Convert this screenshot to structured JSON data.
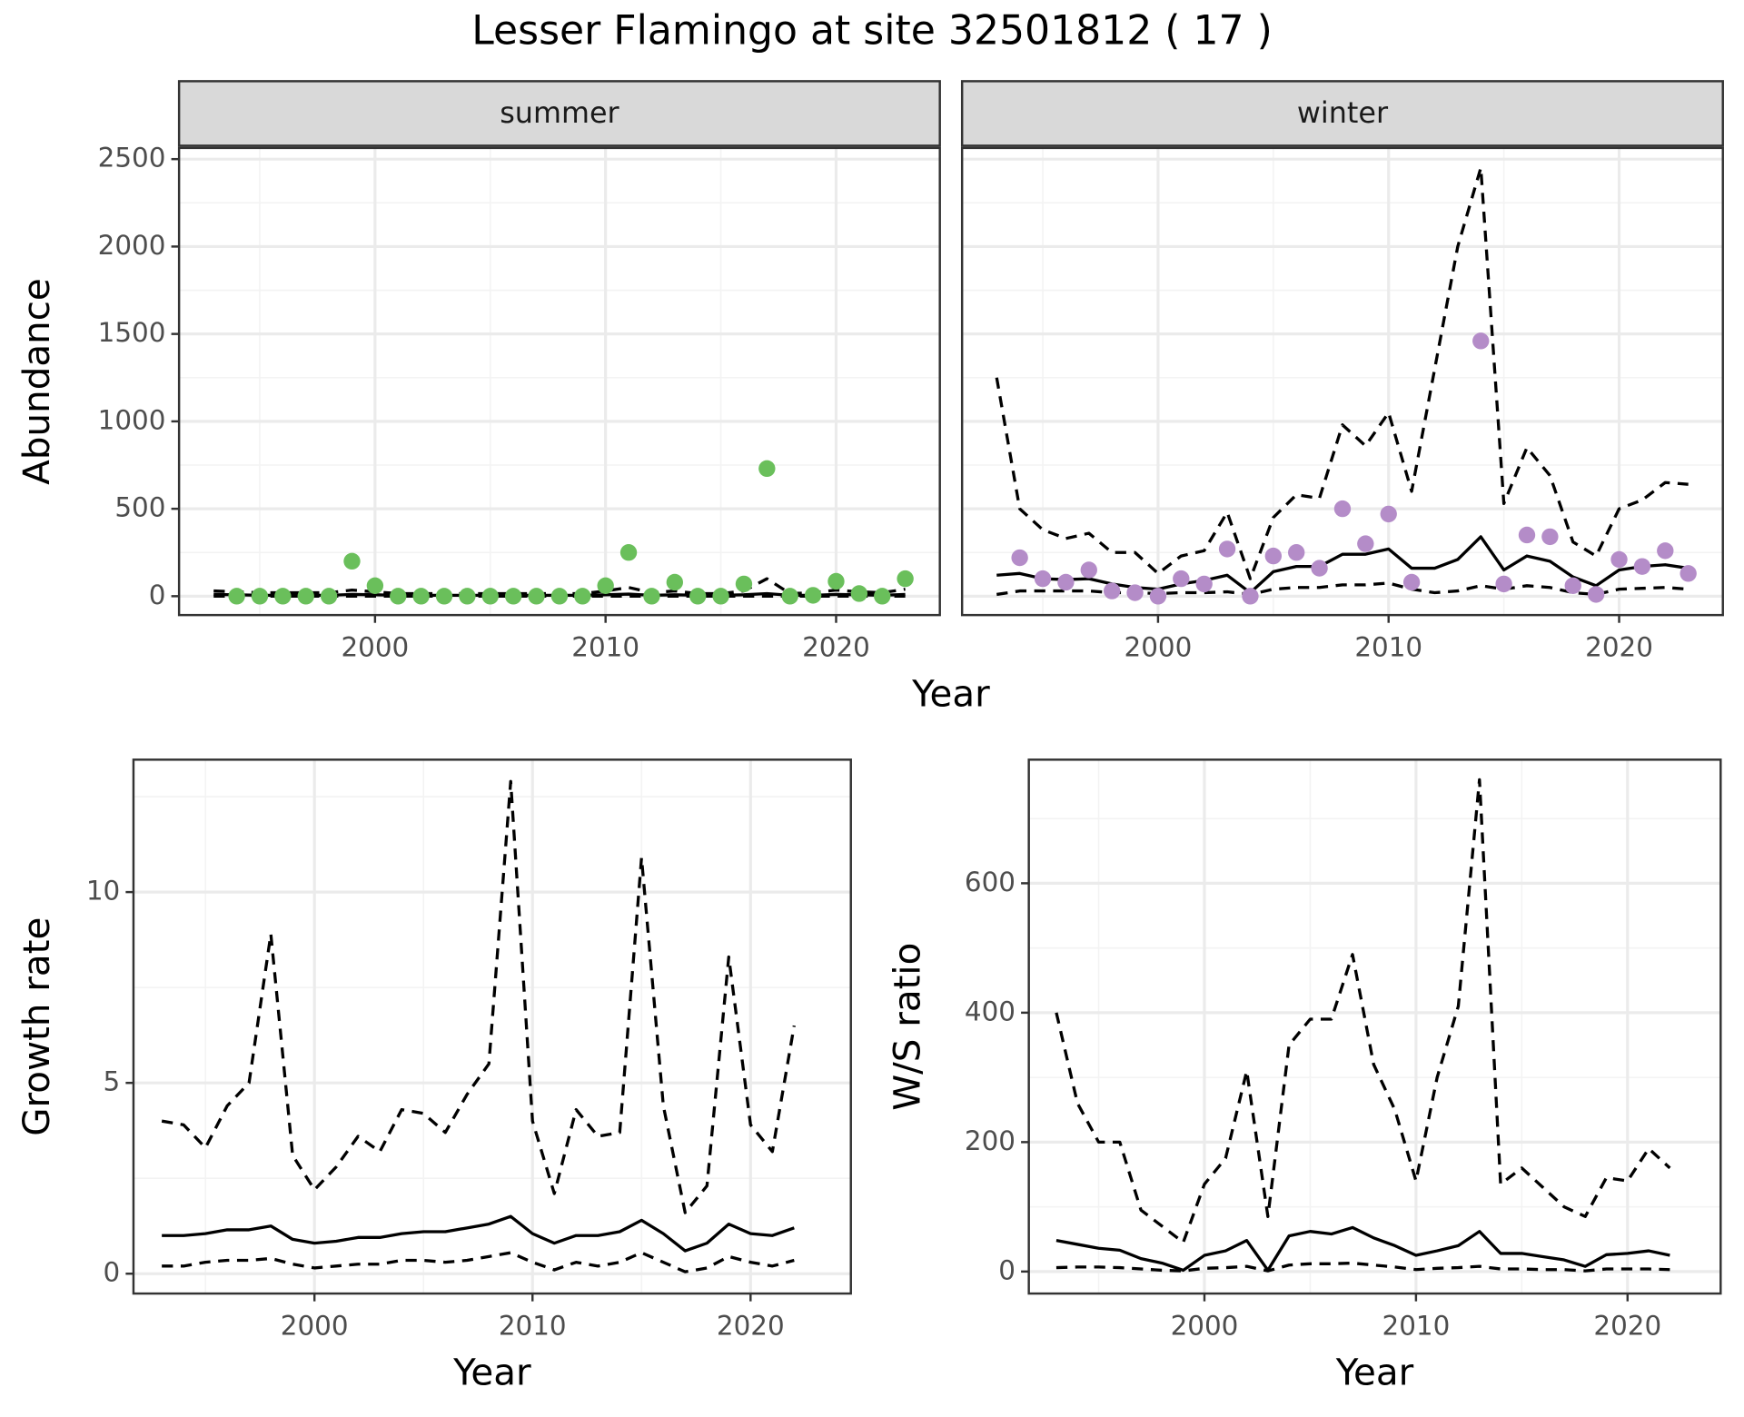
{
  "title": "Lesser Flamingo at site 32501812 ( 17 )",
  "chart_data": [
    {
      "type": "line",
      "title": "summer",
      "xlabel": "Year",
      "ylabel": "Abundance",
      "x": [
        1993,
        1994,
        1995,
        1996,
        1997,
        1998,
        1999,
        2000,
        2001,
        2002,
        2003,
        2004,
        2005,
        2006,
        2007,
        2008,
        2009,
        2010,
        2011,
        2012,
        2013,
        2014,
        2015,
        2016,
        2017,
        2018,
        2019,
        2020,
        2021,
        2022,
        2023
      ],
      "series": [
        {
          "type": "line",
          "linestyle": "dashed",
          "color": "#000000",
          "values": [
            30,
            25,
            20,
            20,
            20,
            20,
            35,
            25,
            15,
            15,
            15,
            15,
            15,
            15,
            15,
            15,
            15,
            30,
            50,
            20,
            30,
            15,
            15,
            30,
            100,
            15,
            20,
            35,
            25,
            20,
            40
          ]
        },
        {
          "type": "line",
          "linestyle": "dashed",
          "color": "#000000",
          "values": [
            0,
            0,
            0,
            0,
            0,
            0,
            0,
            0,
            0,
            0,
            0,
            0,
            0,
            0,
            0,
            0,
            0,
            0,
            0,
            0,
            0,
            0,
            0,
            0,
            0,
            0,
            0,
            0,
            0,
            0,
            0
          ]
        },
        {
          "type": "line",
          "linestyle": "solid",
          "color": "#000000",
          "values": [
            10,
            8,
            5,
            5,
            5,
            5,
            10,
            8,
            5,
            5,
            5,
            5,
            5,
            5,
            5,
            5,
            5,
            8,
            12,
            5,
            8,
            5,
            5,
            8,
            15,
            5,
            5,
            10,
            8,
            5,
            10
          ]
        },
        {
          "type": "scatter",
          "color": "#6abf5b",
          "values": [
            null,
            0,
            0,
            0,
            0,
            0,
            200,
            60,
            0,
            0,
            0,
            0,
            0,
            0,
            0,
            0,
            0,
            60,
            250,
            0,
            80,
            0,
            0,
            70,
            730,
            0,
            5,
            85,
            15,
            0,
            100
          ]
        }
      ],
      "xlim": [
        1991.5,
        2024.5
      ],
      "xticks": [
        2000,
        2010,
        2020
      ],
      "xminor": [
        1995,
        2005,
        2015
      ],
      "ylim": [
        -108,
        2564
      ],
      "yticks": [
        0,
        500,
        1000,
        1500,
        2000,
        2500
      ],
      "yminor": [
        250,
        750,
        1250,
        1750,
        2250
      ],
      "ytick_labels": true,
      "grid": true
    },
    {
      "type": "line",
      "title": "winter",
      "x": [
        1993,
        1994,
        1995,
        1996,
        1997,
        1998,
        1999,
        2000,
        2001,
        2002,
        2003,
        2004,
        2005,
        2006,
        2007,
        2008,
        2009,
        2010,
        2011,
        2012,
        2013,
        2014,
        2015,
        2016,
        2017,
        2018,
        2019,
        2020,
        2021,
        2022,
        2023
      ],
      "series": [
        {
          "type": "line",
          "linestyle": "dashed",
          "color": "#000000",
          "values": [
            1250,
            500,
            380,
            330,
            360,
            250,
            250,
            130,
            230,
            260,
            480,
            100,
            450,
            580,
            560,
            980,
            860,
            1050,
            600,
            1300,
            2000,
            2450,
            530,
            850,
            690,
            310,
            230,
            500,
            550,
            650,
            640
          ]
        },
        {
          "type": "line",
          "linestyle": "dashed",
          "color": "#000000",
          "values": [
            10,
            30,
            30,
            30,
            30,
            20,
            20,
            15,
            20,
            20,
            25,
            10,
            40,
            50,
            50,
            65,
            65,
            75,
            40,
            20,
            30,
            60,
            40,
            60,
            50,
            20,
            10,
            40,
            45,
            50,
            40
          ]
        },
        {
          "type": "line",
          "linestyle": "solid",
          "color": "#000000",
          "values": [
            120,
            130,
            100,
            95,
            100,
            70,
            50,
            40,
            70,
            90,
            120,
            20,
            140,
            170,
            170,
            240,
            240,
            270,
            160,
            160,
            210,
            340,
            150,
            230,
            200,
            110,
            60,
            150,
            170,
            180,
            160
          ]
        },
        {
          "type": "scatter",
          "color": "#b48cc8",
          "values": [
            null,
            220,
            100,
            80,
            150,
            30,
            20,
            0,
            100,
            70,
            270,
            0,
            230,
            250,
            160,
            500,
            300,
            470,
            80,
            null,
            null,
            1460,
            70,
            350,
            340,
            60,
            10,
            210,
            170,
            260,
            130
          ]
        }
      ],
      "xlim": [
        1991.5,
        2024.5
      ],
      "xticks": [
        2000,
        2010,
        2020
      ],
      "xminor": [
        1995,
        2005,
        2015
      ],
      "ylim": [
        -108,
        2564
      ],
      "yticks": [
        0,
        500,
        1000,
        1500,
        2000,
        2500
      ],
      "yminor": [
        250,
        750,
        1250,
        1750,
        2250
      ],
      "ytick_labels": false,
      "grid": true
    },
    {
      "type": "line",
      "xlabel": "Year",
      "ylabel": "Growth rate",
      "x": [
        1993,
        1994,
        1995,
        1996,
        1997,
        1998,
        1999,
        2000,
        2001,
        2002,
        2003,
        2004,
        2005,
        2006,
        2007,
        2008,
        2009,
        2010,
        2011,
        2012,
        2013,
        2014,
        2015,
        2016,
        2017,
        2018,
        2019,
        2020,
        2021,
        2022
      ],
      "series": [
        {
          "type": "line",
          "linestyle": "dashed",
          "color": "#000000",
          "values": [
            4.0,
            3.9,
            3.3,
            4.4,
            5.0,
            8.9,
            3.1,
            2.2,
            2.8,
            3.6,
            3.2,
            4.3,
            4.2,
            3.7,
            4.7,
            5.5,
            12.9,
            4.0,
            2.1,
            4.3,
            3.6,
            3.7,
            10.9,
            4.4,
            1.6,
            2.3,
            8.3,
            3.9,
            3.2,
            6.5
          ]
        },
        {
          "type": "line",
          "linestyle": "dashed",
          "color": "#000000",
          "values": [
            0.2,
            0.2,
            0.3,
            0.35,
            0.35,
            0.4,
            0.25,
            0.15,
            0.2,
            0.25,
            0.25,
            0.35,
            0.35,
            0.3,
            0.35,
            0.45,
            0.55,
            0.3,
            0.1,
            0.3,
            0.2,
            0.3,
            0.55,
            0.3,
            0.05,
            0.15,
            0.45,
            0.3,
            0.2,
            0.35
          ]
        },
        {
          "type": "line",
          "linestyle": "solid",
          "color": "#000000",
          "values": [
            1.0,
            1.0,
            1.05,
            1.15,
            1.15,
            1.25,
            0.9,
            0.8,
            0.85,
            0.95,
            0.95,
            1.05,
            1.1,
            1.1,
            1.2,
            1.3,
            1.5,
            1.05,
            0.8,
            1.0,
            1.0,
            1.1,
            1.4,
            1.05,
            0.6,
            0.8,
            1.3,
            1.05,
            1.0,
            1.2
          ]
        }
      ],
      "xlim": [
        1991.7,
        2024.6
      ],
      "xticks": [
        2000,
        2010,
        2020
      ],
      "xminor": [
        1995,
        2005,
        2015
      ],
      "ylim": [
        -0.52,
        13.47
      ],
      "yticks": [
        0,
        5,
        10
      ],
      "yminor": [
        2.5,
        7.5,
        12.5
      ],
      "ytick_labels": true,
      "grid": true
    },
    {
      "type": "line",
      "xlabel": "Year",
      "ylabel": "W/S ratio",
      "x": [
        1993,
        1994,
        1995,
        1996,
        1997,
        1998,
        1999,
        2000,
        2001,
        2002,
        2003,
        2004,
        2005,
        2006,
        2007,
        2008,
        2009,
        2010,
        2011,
        2012,
        2013,
        2014,
        2015,
        2016,
        2017,
        2018,
        2019,
        2020,
        2021,
        2022
      ],
      "series": [
        {
          "type": "line",
          "linestyle": "dashed",
          "color": "#000000",
          "values": [
            400,
            260,
            200,
            200,
            95,
            70,
            45,
            135,
            175,
            310,
            85,
            350,
            390,
            390,
            490,
            320,
            250,
            140,
            300,
            410,
            760,
            135,
            160,
            130,
            100,
            85,
            145,
            140,
            190,
            160
          ]
        },
        {
          "type": "line",
          "linestyle": "dashed",
          "color": "#000000",
          "values": [
            6,
            7,
            7,
            6,
            4,
            2,
            1,
            5,
            6,
            8,
            1,
            10,
            12,
            12,
            13,
            10,
            7,
            3,
            5,
            6,
            8,
            4,
            4,
            3,
            3,
            1,
            4,
            4,
            4,
            3
          ]
        },
        {
          "type": "line",
          "linestyle": "solid",
          "color": "#000000",
          "values": [
            48,
            42,
            36,
            33,
            20,
            13,
            2,
            25,
            32,
            48,
            2,
            55,
            62,
            58,
            68,
            52,
            40,
            25,
            32,
            40,
            62,
            28,
            28,
            23,
            18,
            8,
            26,
            28,
            32,
            25
          ]
        }
      ],
      "xlim": [
        1991.7,
        2024.4
      ],
      "xticks": [
        2000,
        2010,
        2020
      ],
      "xminor": [
        1995,
        2005,
        2015
      ],
      "ylim": [
        -34,
        791
      ],
      "yticks": [
        0,
        200,
        400,
        600
      ],
      "yminor": [
        100,
        300,
        500,
        700
      ],
      "ytick_labels": true,
      "grid": true
    }
  ]
}
